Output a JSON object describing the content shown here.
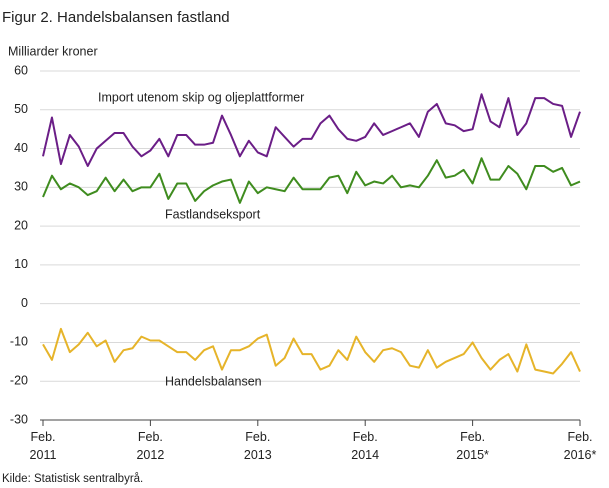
{
  "chart_data": {
    "type": "line",
    "title": "Figur 2. Handelsbalansen fastland",
    "y_label": "Milliarder  kroner",
    "source": "Kilde: Statistisk sentralbyrå.",
    "categories": [
      "Feb. 2011",
      null,
      null,
      null,
      null,
      null,
      null,
      null,
      null,
      null,
      null,
      null,
      "Feb. 2012",
      null,
      null,
      null,
      null,
      null,
      null,
      null,
      null,
      null,
      null,
      null,
      "Feb. 2013",
      null,
      null,
      null,
      null,
      null,
      null,
      null,
      null,
      null,
      null,
      null,
      "Feb. 2014",
      null,
      null,
      null,
      null,
      null,
      null,
      null,
      null,
      null,
      null,
      null,
      "Feb. 2015*",
      null,
      null,
      null,
      null,
      null,
      null,
      null,
      null,
      null,
      null,
      null,
      "Feb. 2016*"
    ],
    "ylim": [
      -30,
      60
    ],
    "yticks": [
      -30,
      -20,
      -10,
      0,
      10,
      20,
      30,
      40,
      50,
      60
    ],
    "grid": true,
    "series": [
      {
        "name": "Import utenom skip og oljeplattformer",
        "color": "#6b1e87",
        "values": [
          38,
          48,
          36,
          43.5,
          40.5,
          35.5,
          40,
          42,
          44,
          44,
          40.5,
          38,
          39.5,
          42.5,
          38,
          43.5,
          43.5,
          41,
          41,
          41.5,
          48.5,
          43.5,
          38,
          42,
          39,
          38,
          45.5,
          43,
          40.5,
          42.5,
          42.5,
          46.5,
          48.5,
          45,
          42.5,
          42,
          43,
          46.5,
          43.5,
          44.5,
          45.5,
          46.5,
          43,
          49.5,
          51.5,
          46.5,
          46,
          44.5,
          45,
          54,
          47,
          45.5,
          53,
          43.5,
          46.5,
          53,
          53,
          51.5,
          51,
          43,
          49.5
        ]
      },
      {
        "name": "Fastlandseksport",
        "color": "#3f8c1f",
        "values": [
          27.5,
          33,
          29.5,
          31,
          30,
          28,
          29,
          32.5,
          29,
          32,
          29,
          30,
          30,
          33.5,
          27,
          31,
          31,
          26.5,
          29,
          30.5,
          31.5,
          32,
          26,
          31.5,
          28.5,
          30,
          29.5,
          29,
          32.5,
          29.5,
          29.5,
          29.5,
          32.5,
          33,
          28.5,
          34,
          30.5,
          31.5,
          31,
          33,
          30,
          30.5,
          30,
          33,
          37,
          32.5,
          33,
          34.5,
          31,
          37.5,
          32,
          32,
          35.5,
          33.5,
          29.5,
          35.5,
          35.5,
          34,
          35,
          30.5,
          31.5
        ]
      },
      {
        "name": "Handelsbalansen",
        "color": "#e6b42a",
        "values": [
          -10.5,
          -14.5,
          -6.5,
          -12.5,
          -10.5,
          -7.5,
          -11,
          -9.5,
          -15,
          -12,
          -11.5,
          -8.5,
          -9.5,
          -9.5,
          -11,
          -12.5,
          -12.5,
          -14.5,
          -12,
          -11,
          -17,
          -12,
          -12,
          -11,
          -9,
          -8,
          -16,
          -14,
          -9,
          -13,
          -13,
          -17,
          -16,
          -12,
          -14.5,
          -8.5,
          -12.5,
          -15,
          -12,
          -11.5,
          -12.5,
          -16,
          -16.5,
          -12,
          -16.5,
          -15,
          -14,
          -13,
          -10,
          -14,
          -17,
          -14.5,
          -13,
          -17.5,
          -10.5,
          -17,
          -17.5,
          -18,
          -15.5,
          -12.5,
          -17.5
        ]
      }
    ]
  }
}
